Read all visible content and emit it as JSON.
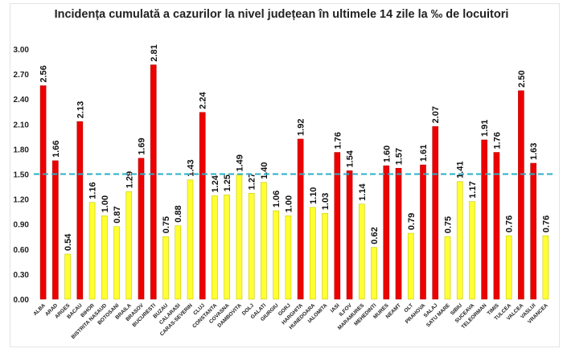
{
  "chart_data": {
    "type": "bar",
    "title": "Incidența cumulată a cazurilor la nivel județean în ultimele 14 zile la ‰ de locuitori",
    "xlabel": "",
    "ylabel": "",
    "ylim": [
      0,
      3.0
    ],
    "yticks": [
      "0.00",
      "0.30",
      "0.60",
      "0.90",
      "1.20",
      "1.50",
      "1.80",
      "2.10",
      "2.40",
      "2.70",
      "3.00"
    ],
    "grid": false,
    "threshold": 1.5,
    "colors": {
      "above": "#ee0000",
      "below": "#ffff33",
      "threshold_line": "#2ab0c8"
    },
    "categories": [
      "ALBA",
      "ARAD",
      "ARGES",
      "BACAU",
      "BIHOR",
      "BISTRITA NASAUD",
      "BOTOSANI",
      "BRAILA",
      "BRASOV",
      "BUCURESTI",
      "BUZAU",
      "CALARASI",
      "CARAS-SEVERIN",
      "CLUJ",
      "CONSTANTA",
      "COVASNA",
      "DAMBOVITA",
      "DOLJ",
      "GALATI",
      "GIURGIU",
      "GORJ",
      "HARGHITA",
      "HUNEDOARA",
      "IALOMITA",
      "IASI",
      "ILFOV",
      "MARAMURES",
      "MEHEDINTI",
      "MURES",
      "NEAMT",
      "OLT",
      "PRAHOVA",
      "SALAJ",
      "SATU MARE",
      "SIBIU",
      "SUCEAVA",
      "TELEORMAN",
      "TIMIS",
      "TULCEA",
      "VALCEA",
      "VASLUI",
      "VRANCEA"
    ],
    "values": [
      2.56,
      1.66,
      0.54,
      2.13,
      1.16,
      1.0,
      0.87,
      1.29,
      1.69,
      2.81,
      0.75,
      0.88,
      1.43,
      2.24,
      1.24,
      1.25,
      1.49,
      1.27,
      1.4,
      1.06,
      1.0,
      1.92,
      1.1,
      1.03,
      1.76,
      1.54,
      1.14,
      0.62,
      1.6,
      1.57,
      0.79,
      1.61,
      2.07,
      0.75,
      1.41,
      1.17,
      1.91,
      1.76,
      0.76,
      2.5,
      1.63,
      0.76
    ]
  }
}
